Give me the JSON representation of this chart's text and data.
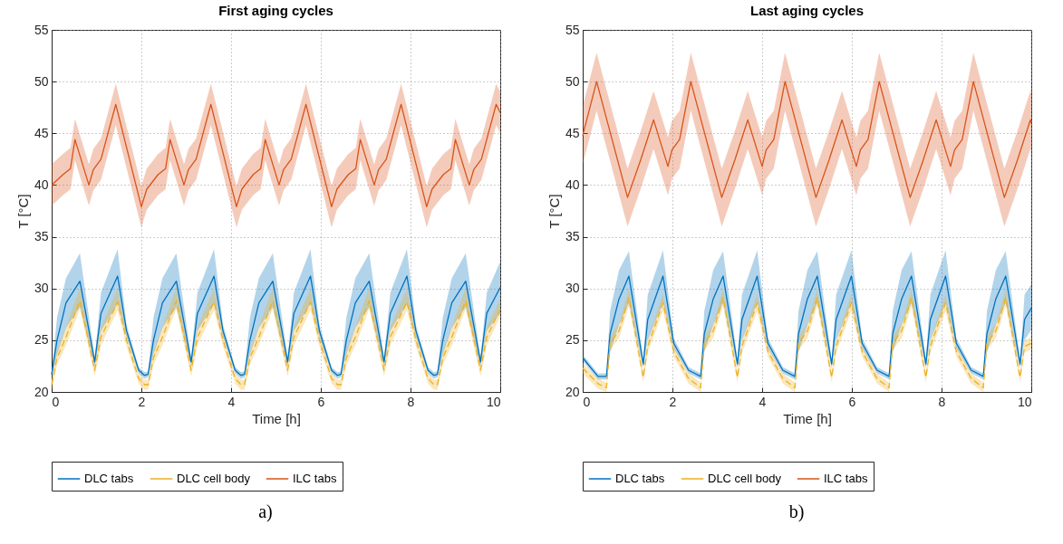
{
  "chart_data": [
    {
      "type": "line",
      "title": "First aging cycles",
      "xlabel": "Time [h]",
      "ylabel": "T [°C]",
      "xlim": [
        0,
        10
      ],
      "xticks": [
        0,
        2,
        4,
        6,
        8,
        10
      ],
      "ylim": [
        20,
        55
      ],
      "yticks": [
        20,
        25,
        30,
        35,
        40,
        45,
        50,
        55
      ],
      "grid": true,
      "legend": "bottom",
      "marker": "none",
      "annotations": [
        "a)"
      ],
      "series": [
        {
          "name": "DLC tabs",
          "color": "#0072bd",
          "line_style": "solid",
          "x": [
            0,
            0.12,
            0.32,
            0.63,
            0.96,
            1.1,
            1.47,
            1.67,
            1.94,
            2.07,
            2.15,
            2.27,
            2.47,
            2.78,
            3.11,
            3.25,
            3.62,
            3.82,
            4.09,
            4.22,
            4.3,
            4.42,
            4.62,
            4.93,
            5.26,
            5.4,
            5.77,
            5.97,
            6.24,
            6.37,
            6.45,
            6.57,
            6.77,
            7.08,
            7.41,
            7.55,
            7.92,
            8.12,
            8.39,
            8.52,
            8.6,
            8.72,
            8.92,
            9.23,
            9.56,
            9.7,
            10
          ],
          "values": [
            21.7,
            25.0,
            28.6,
            30.7,
            22.9,
            27.6,
            31.2,
            25.9,
            22.1,
            21.6,
            21.7,
            25.0,
            28.6,
            30.7,
            22.9,
            27.6,
            31.2,
            25.9,
            22.1,
            21.6,
            21.7,
            25.0,
            28.6,
            30.7,
            22.9,
            27.6,
            31.2,
            25.9,
            22.1,
            21.6,
            21.7,
            25.0,
            28.6,
            30.7,
            22.9,
            27.6,
            31.2,
            25.9,
            22.1,
            21.6,
            21.7,
            25.0,
            28.6,
            30.7,
            22.9,
            27.6,
            30.1
          ],
          "lower": [
            21.4,
            23.6,
            26.2,
            28.2,
            22.5,
            25.9,
            28.5,
            25.3,
            21.8,
            21.3,
            21.4,
            23.6,
            26.2,
            28.2,
            22.5,
            25.9,
            28.5,
            25.3,
            21.8,
            21.3,
            21.4,
            23.6,
            26.2,
            28.2,
            22.5,
            25.9,
            28.5,
            25.3,
            21.8,
            21.3,
            21.4,
            23.6,
            26.2,
            28.2,
            22.5,
            25.9,
            28.5,
            25.3,
            21.8,
            21.3,
            21.4,
            23.6,
            26.2,
            28.2,
            22.5,
            25.9,
            27.6
          ],
          "upper": [
            22.0,
            27.2,
            31.0,
            33.4,
            23.3,
            29.6,
            33.8,
            26.5,
            22.4,
            21.9,
            22.0,
            27.2,
            31.0,
            33.4,
            23.3,
            29.6,
            33.8,
            26.5,
            22.4,
            21.9,
            22.0,
            27.2,
            31.0,
            33.4,
            23.3,
            29.6,
            33.8,
            26.5,
            22.4,
            21.9,
            22.0,
            27.2,
            31.0,
            33.4,
            23.3,
            29.6,
            33.8,
            26.5,
            22.4,
            21.9,
            22.0,
            27.2,
            31.0,
            33.4,
            23.3,
            29.6,
            32.6
          ]
        },
        {
          "name": "DLC cell body",
          "color": "#edb120",
          "line_style": "dashed",
          "x": [
            0,
            0.12,
            0.32,
            0.63,
            0.96,
            1.1,
            1.47,
            1.67,
            1.94,
            2.07,
            2.15,
            2.27,
            2.47,
            2.78,
            3.11,
            3.25,
            3.62,
            3.82,
            4.09,
            4.22,
            4.3,
            4.42,
            4.62,
            4.93,
            5.26,
            5.4,
            5.77,
            5.97,
            6.24,
            6.37,
            6.45,
            6.57,
            6.77,
            7.08,
            7.41,
            7.55,
            7.92,
            8.12,
            8.39,
            8.52,
            8.6,
            8.72,
            8.92,
            9.23,
            9.56,
            9.7,
            10
          ],
          "values": [
            20.7,
            23.3,
            25.3,
            28.8,
            22.1,
            25.3,
            28.7,
            25.0,
            21.3,
            20.7,
            20.7,
            23.3,
            25.3,
            28.8,
            22.1,
            25.3,
            28.7,
            25.0,
            21.3,
            20.7,
            20.7,
            23.3,
            25.3,
            28.8,
            22.1,
            25.3,
            28.7,
            25.0,
            21.3,
            20.7,
            20.7,
            23.3,
            25.3,
            28.8,
            22.1,
            25.3,
            28.7,
            25.0,
            21.3,
            20.7,
            20.7,
            23.3,
            25.3,
            28.8,
            22.1,
            25.3,
            28.0
          ],
          "lower": [
            20.2,
            22.6,
            24.5,
            28.0,
            21.5,
            24.5,
            27.9,
            24.4,
            20.8,
            20.2,
            20.2,
            22.6,
            24.5,
            28.0,
            21.5,
            24.5,
            27.9,
            24.4,
            20.8,
            20.2,
            20.2,
            22.6,
            24.5,
            28.0,
            21.5,
            24.5,
            27.9,
            24.4,
            20.8,
            20.2,
            20.2,
            22.6,
            24.5,
            28.0,
            21.5,
            24.5,
            27.9,
            24.4,
            20.8,
            20.2,
            20.2,
            22.6,
            24.5,
            28.0,
            21.5,
            24.5,
            27.3
          ],
          "upper": [
            21.2,
            24.0,
            26.3,
            30.1,
            22.7,
            26.3,
            30.0,
            25.6,
            21.8,
            21.2,
            21.2,
            24.0,
            26.3,
            30.1,
            22.7,
            26.3,
            30.0,
            25.6,
            21.8,
            21.2,
            21.2,
            24.0,
            26.3,
            30.1,
            22.7,
            26.3,
            30.0,
            25.6,
            21.8,
            21.2,
            21.2,
            24.0,
            26.3,
            30.1,
            22.7,
            26.3,
            30.0,
            25.6,
            21.8,
            21.2,
            21.2,
            24.0,
            26.3,
            30.1,
            22.7,
            26.3,
            29.0
          ]
        },
        {
          "name": "ILC tabs",
          "color": "#d95319",
          "line_style": "solid",
          "x": [
            0,
            0.25,
            0.42,
            0.52,
            0.83,
            0.93,
            1.1,
            1.43,
            2.0,
            2.12,
            2.37,
            2.54,
            2.64,
            2.95,
            3.05,
            3.22,
            3.55,
            4.12,
            4.24,
            4.49,
            4.66,
            4.76,
            5.07,
            5.17,
            5.34,
            5.67,
            6.24,
            6.36,
            6.61,
            6.78,
            6.88,
            7.19,
            7.29,
            7.46,
            7.79,
            8.36,
            8.48,
            8.73,
            8.9,
            9.0,
            9.31,
            9.41,
            9.58,
            9.91,
            10
          ],
          "values": [
            40.0,
            41.0,
            41.6,
            44.4,
            40.0,
            41.5,
            42.5,
            47.8,
            37.9,
            39.6,
            41.0,
            41.6,
            44.4,
            40.0,
            41.5,
            42.5,
            47.8,
            37.9,
            39.6,
            41.0,
            41.6,
            44.4,
            40.0,
            41.5,
            42.5,
            47.8,
            37.9,
            39.6,
            41.0,
            41.6,
            44.4,
            40.0,
            41.5,
            42.5,
            47.8,
            37.9,
            39.6,
            41.0,
            41.6,
            44.4,
            40.0,
            41.5,
            42.5,
            47.8,
            47.0
          ],
          "lower": [
            38.0,
            39.0,
            39.6,
            42.4,
            38.0,
            39.5,
            40.5,
            45.8,
            35.9,
            37.6,
            39.0,
            39.6,
            42.4,
            38.0,
            39.5,
            40.5,
            45.8,
            35.9,
            37.6,
            39.0,
            39.6,
            42.4,
            38.0,
            39.5,
            40.5,
            45.8,
            35.9,
            37.6,
            39.0,
            39.6,
            42.4,
            38.0,
            39.5,
            40.5,
            45.8,
            35.9,
            37.6,
            39.0,
            39.6,
            42.4,
            38.0,
            39.5,
            40.5,
            45.8,
            45.0
          ],
          "upper": [
            42.0,
            43.0,
            43.6,
            46.4,
            42.0,
            43.5,
            44.5,
            49.8,
            39.9,
            41.6,
            43.0,
            43.6,
            46.4,
            42.0,
            43.5,
            44.5,
            49.8,
            39.9,
            41.6,
            43.0,
            43.6,
            46.4,
            42.0,
            43.5,
            44.5,
            49.8,
            39.9,
            41.6,
            43.0,
            43.6,
            46.4,
            42.0,
            43.5,
            44.5,
            49.8,
            39.9,
            41.6,
            43.0,
            43.6,
            46.4,
            42.0,
            43.5,
            44.5,
            49.8,
            49.0
          ]
        }
      ]
    },
    {
      "type": "line",
      "title": "Last aging cycles",
      "xlabel": "Time [h]",
      "ylabel": "T [°C]",
      "xlim": [
        0,
        10
      ],
      "xticks": [
        0,
        2,
        4,
        6,
        8,
        10
      ],
      "ylim": [
        20,
        55
      ],
      "yticks": [
        20,
        25,
        30,
        35,
        40,
        45,
        50,
        55
      ],
      "grid": true,
      "legend": "bottom",
      "marker": "none",
      "annotations": [
        "b)"
      ],
      "series": [
        {
          "name": "DLC tabs",
          "color": "#0072bd",
          "line_style": "solid",
          "x": [
            0,
            0.34,
            0.53,
            0.61,
            0.81,
            1.03,
            1.35,
            1.45,
            1.79,
            2.03,
            2.36,
            2.63,
            2.71,
            2.91,
            3.13,
            3.45,
            3.55,
            3.89,
            4.13,
            4.46,
            4.73,
            4.81,
            5.01,
            5.23,
            5.55,
            5.65,
            5.99,
            6.23,
            6.56,
            6.83,
            6.91,
            7.11,
            7.33,
            7.65,
            7.75,
            8.09,
            8.33,
            8.66,
            8.93,
            9.01,
            9.21,
            9.43,
            9.75,
            9.85,
            10
          ],
          "values": [
            23.3,
            21.5,
            21.5,
            25.6,
            29.0,
            31.2,
            22.7,
            27.0,
            31.2,
            24.7,
            22.1,
            21.5,
            25.6,
            29.0,
            31.2,
            22.7,
            27.0,
            31.2,
            24.7,
            22.1,
            21.5,
            25.6,
            29.0,
            31.2,
            22.7,
            27.0,
            31.2,
            24.7,
            22.1,
            21.5,
            25.6,
            29.0,
            31.2,
            22.7,
            27.0,
            31.2,
            24.7,
            22.1,
            21.5,
            25.6,
            29.0,
            31.2,
            22.7,
            27.0,
            28.1
          ],
          "lower": [
            23.0,
            21.2,
            21.2,
            23.8,
            26.5,
            28.6,
            22.3,
            25.0,
            28.6,
            24.2,
            21.8,
            21.2,
            23.8,
            26.5,
            28.6,
            22.3,
            25.0,
            28.6,
            24.2,
            21.8,
            21.2,
            23.8,
            26.5,
            28.6,
            22.3,
            25.0,
            28.6,
            24.2,
            21.8,
            21.2,
            23.8,
            26.5,
            28.6,
            22.3,
            25.0,
            28.6,
            24.2,
            21.8,
            21.2,
            23.8,
            26.5,
            28.6,
            22.3,
            25.0,
            26.0
          ],
          "upper": [
            23.6,
            21.8,
            21.8,
            27.8,
            31.8,
            33.6,
            23.1,
            29.4,
            33.7,
            25.2,
            22.4,
            21.8,
            27.8,
            31.8,
            33.6,
            23.1,
            29.4,
            33.7,
            25.2,
            22.4,
            21.8,
            27.8,
            31.8,
            33.6,
            23.1,
            29.4,
            33.7,
            25.2,
            22.4,
            21.8,
            27.8,
            31.8,
            33.6,
            23.1,
            29.4,
            33.7,
            25.2,
            22.4,
            21.8,
            27.8,
            31.8,
            33.6,
            23.1,
            29.4,
            30.4
          ]
        },
        {
          "name": "DLC cell body",
          "color": "#edb120",
          "line_style": "dashed",
          "x": [
            0,
            0.34,
            0.53,
            0.61,
            0.81,
            1.03,
            1.35,
            1.45,
            1.79,
            2.03,
            2.36,
            2.63,
            2.71,
            2.91,
            3.13,
            3.45,
            3.55,
            3.89,
            4.13,
            4.46,
            4.73,
            4.81,
            5.01,
            5.23,
            5.55,
            5.65,
            5.99,
            6.23,
            6.56,
            6.83,
            6.91,
            7.11,
            7.33,
            7.65,
            7.75,
            8.09,
            8.33,
            8.66,
            8.93,
            9.01,
            9.21,
            9.43,
            9.75,
            9.85,
            10
          ],
          "values": [
            22.3,
            20.8,
            20.4,
            24.7,
            25.9,
            29.1,
            21.4,
            24.4,
            28.6,
            23.9,
            21.3,
            20.4,
            24.7,
            25.9,
            29.1,
            21.4,
            24.4,
            28.6,
            23.9,
            21.3,
            20.4,
            24.7,
            25.9,
            29.1,
            21.4,
            24.4,
            28.6,
            23.9,
            21.3,
            20.4,
            24.7,
            25.9,
            29.1,
            21.4,
            24.4,
            28.6,
            23.9,
            21.3,
            20.4,
            24.7,
            25.9,
            29.1,
            21.4,
            24.4,
            24.7
          ],
          "lower": [
            21.8,
            20.3,
            20.0,
            24.0,
            25.2,
            28.3,
            20.9,
            23.8,
            27.8,
            23.4,
            20.8,
            20.0,
            24.0,
            25.2,
            28.3,
            20.9,
            23.8,
            27.8,
            23.4,
            20.8,
            20.0,
            24.0,
            25.2,
            28.3,
            20.9,
            23.8,
            27.8,
            23.4,
            20.8,
            20.0,
            24.0,
            25.2,
            28.3,
            20.9,
            23.8,
            27.8,
            23.4,
            20.8,
            20.0,
            24.0,
            25.2,
            28.3,
            20.9,
            23.8,
            24.1
          ],
          "upper": [
            22.8,
            21.3,
            20.9,
            25.4,
            26.6,
            30.0,
            21.9,
            25.0,
            29.5,
            24.4,
            21.8,
            20.9,
            25.4,
            26.6,
            30.0,
            21.9,
            25.0,
            29.5,
            24.4,
            21.8,
            20.9,
            25.4,
            26.6,
            30.0,
            21.9,
            25.0,
            29.5,
            24.4,
            21.8,
            20.9,
            25.4,
            26.6,
            30.0,
            21.9,
            25.0,
            29.5,
            24.4,
            21.8,
            20.9,
            25.4,
            26.6,
            30.0,
            21.9,
            25.0,
            25.3
          ]
        },
        {
          "name": "ILC tabs",
          "color": "#d95319",
          "line_style": "solid",
          "x": [
            0,
            0.31,
            1.0,
            1.29,
            1.58,
            1.9,
            1.99,
            2.16,
            2.41,
            3.1,
            3.39,
            3.68,
            4.0,
            4.09,
            4.26,
            4.51,
            5.2,
            5.49,
            5.78,
            6.1,
            6.19,
            6.36,
            6.61,
            7.3,
            7.59,
            7.88,
            8.2,
            8.29,
            8.46,
            8.71,
            9.4,
            9.69,
            9.98,
            10
          ],
          "values": [
            44.8,
            50.0,
            38.8,
            42.4,
            46.3,
            41.8,
            43.4,
            44.4,
            50.0,
            38.8,
            42.4,
            46.3,
            41.8,
            43.4,
            44.4,
            50.0,
            38.8,
            42.4,
            46.3,
            41.8,
            43.4,
            44.4,
            50.0,
            38.8,
            42.4,
            46.3,
            41.8,
            43.4,
            44.4,
            50.0,
            38.8,
            42.4,
            46.3,
            46.0
          ],
          "lower": [
            42.0,
            47.2,
            36.0,
            39.6,
            43.5,
            39.0,
            40.6,
            41.6,
            47.2,
            36.0,
            39.6,
            43.5,
            39.0,
            40.6,
            41.6,
            47.2,
            36.0,
            39.6,
            43.5,
            39.0,
            40.6,
            41.6,
            47.2,
            36.0,
            39.6,
            43.5,
            39.0,
            40.6,
            41.6,
            47.2,
            36.0,
            39.6,
            43.5,
            43.2
          ],
          "upper": [
            47.6,
            52.8,
            41.6,
            45.2,
            49.1,
            44.6,
            46.2,
            47.2,
            52.8,
            41.6,
            45.2,
            49.1,
            44.6,
            46.2,
            47.2,
            52.8,
            41.6,
            45.2,
            49.1,
            44.6,
            46.2,
            47.2,
            52.8,
            41.6,
            45.2,
            49.1,
            44.6,
            46.2,
            47.2,
            52.8,
            41.6,
            45.2,
            49.1,
            48.8
          ]
        }
      ]
    }
  ]
}
